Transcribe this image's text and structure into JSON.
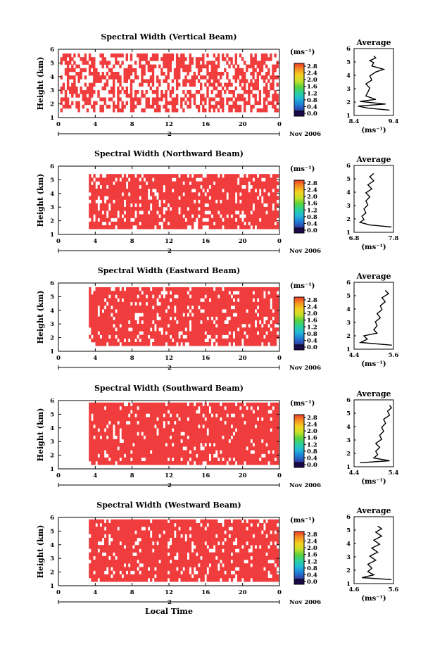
{
  "figure": {
    "xlabel": "Local Time",
    "date_label": "2",
    "month_label": "Nov 2006",
    "colorbar_unit": "(ms⁻¹)",
    "average_title": "Average",
    "average_xunit": "(ms⁻¹)",
    "ylabel": "Height (km)",
    "colors": {
      "fill": "#f03c3c",
      "white_gap": "#ffffff",
      "line": "#000000",
      "colorbar_stops": [
        "#1a0a4a",
        "#2e3fa8",
        "#1e7fd8",
        "#22b8d8",
        "#2ad19a",
        "#5ad23c",
        "#c8e028",
        "#f5d020",
        "#f59020",
        "#ee3a28"
      ]
    },
    "icons": {
      "colorbar": "rainbow-colorbar",
      "date-marker": "date-arrow-icon"
    }
  },
  "chart_data": [
    {
      "type": "heatmap",
      "title": "Spectral Width (Vertical Beam)",
      "xlabel": "Local Time",
      "ylabel": "Height (km)",
      "x_ticks": [
        "0",
        "4",
        "8",
        "12",
        "16",
        "20",
        "0"
      ],
      "xlim": [
        0,
        24
      ],
      "y_ticks": [
        "1",
        "2",
        "3",
        "4",
        "5",
        "6"
      ],
      "ylim": [
        1,
        6
      ],
      "colorbar_ticks": [
        "2.8",
        "2.4",
        "2.0",
        "1.6",
        "1.2",
        "0.8",
        "0.4",
        "0.0"
      ],
      "colorbar_range": [
        0,
        2.8
      ],
      "coverage": {
        "alt_min": 1.4,
        "alt_max": 5.6,
        "fill_fraction": 0.55
      },
      "average_profile": {
        "title": "Average",
        "xlabel": "(ms⁻¹)",
        "x_ticks": [
          "8.4",
          "9.4"
        ],
        "xlim": [
          8.4,
          9.4
        ],
        "y_ticks": [
          "1",
          "2",
          "3",
          "4",
          "5",
          "6"
        ],
        "ylim": [
          1,
          6
        ],
        "profile": [
          {
            "h": 1.4,
            "v": 9.3
          },
          {
            "h": 1.55,
            "v": 8.75
          },
          {
            "h": 1.7,
            "v": 8.5
          },
          {
            "h": 1.85,
            "v": 9.2
          },
          {
            "h": 2.05,
            "v": 8.55
          },
          {
            "h": 2.2,
            "v": 8.95
          },
          {
            "h": 2.45,
            "v": 8.7
          },
          {
            "h": 2.75,
            "v": 8.75
          },
          {
            "h": 3.05,
            "v": 8.8
          },
          {
            "h": 3.35,
            "v": 8.7
          },
          {
            "h": 3.65,
            "v": 8.85
          },
          {
            "h": 3.95,
            "v": 8.8
          },
          {
            "h": 4.25,
            "v": 8.95
          },
          {
            "h": 4.45,
            "v": 9.15
          },
          {
            "h": 4.7,
            "v": 8.85
          },
          {
            "h": 4.95,
            "v": 8.9
          },
          {
            "h": 5.1,
            "v": 8.8
          },
          {
            "h": 5.3,
            "v": 8.95
          },
          {
            "h": 5.45,
            "v": 8.9
          }
        ]
      }
    },
    {
      "type": "heatmap",
      "title": "Spectral Width (Northward Beam)",
      "xlabel": "Local Time",
      "ylabel": "Height (km)",
      "x_ticks": [
        "0",
        "4",
        "8",
        "12",
        "16",
        "20",
        "0"
      ],
      "xlim": [
        0,
        24
      ],
      "y_ticks": [
        "1",
        "2",
        "3",
        "4",
        "5",
        "6"
      ],
      "ylim": [
        1,
        6
      ],
      "colorbar_ticks": [
        "2.8",
        "2.4",
        "2.0",
        "1.6",
        "1.2",
        "0.8",
        "0.4",
        "0.0"
      ],
      "colorbar_range": [
        0,
        2.8
      ],
      "coverage": {
        "alt_min": 1.4,
        "alt_max": 5.4,
        "fill_fraction": 0.82
      },
      "average_profile": {
        "title": "Average",
        "xlabel": "(ms⁻¹)",
        "x_ticks": [
          "6.8",
          "7.8"
        ],
        "xlim": [
          6.8,
          7.8
        ],
        "y_ticks": [
          "1",
          "2",
          "3",
          "4",
          "5",
          "6"
        ],
        "ylim": [
          1,
          6
        ],
        "profile": [
          {
            "h": 1.4,
            "v": 7.75
          },
          {
            "h": 1.55,
            "v": 7.2
          },
          {
            "h": 1.75,
            "v": 6.95
          },
          {
            "h": 1.95,
            "v": 7.05
          },
          {
            "h": 2.2,
            "v": 7.0
          },
          {
            "h": 2.45,
            "v": 7.1
          },
          {
            "h": 2.75,
            "v": 7.05
          },
          {
            "h": 3.05,
            "v": 7.15
          },
          {
            "h": 3.35,
            "v": 7.1
          },
          {
            "h": 3.65,
            "v": 7.2
          },
          {
            "h": 3.95,
            "v": 7.1
          },
          {
            "h": 4.25,
            "v": 7.25
          },
          {
            "h": 4.55,
            "v": 7.15
          },
          {
            "h": 4.85,
            "v": 7.3
          },
          {
            "h": 5.15,
            "v": 7.2
          },
          {
            "h": 5.4,
            "v": 7.3
          }
        ]
      }
    },
    {
      "type": "heatmap",
      "title": "Spectral Width (Eastward Beam)",
      "xlabel": "Local Time",
      "ylabel": "Height (km)",
      "x_ticks": [
        "0",
        "4",
        "8",
        "12",
        "16",
        "20",
        "0"
      ],
      "xlim": [
        0,
        24
      ],
      "y_ticks": [
        "1",
        "2",
        "3",
        "4",
        "5",
        "6"
      ],
      "ylim": [
        1,
        6
      ],
      "colorbar_ticks": [
        "2.8",
        "2.4",
        "2.0",
        "1.6",
        "1.2",
        "0.8",
        "0.4",
        "0.0"
      ],
      "colorbar_range": [
        0,
        2.8
      ],
      "coverage": {
        "alt_min": 1.4,
        "alt_max": 5.6,
        "fill_fraction": 0.85
      },
      "average_profile": {
        "title": "Average",
        "xlabel": "(ms⁻¹)",
        "x_ticks": [
          "4.4",
          "5.6"
        ],
        "xlim": [
          4.4,
          5.6
        ],
        "y_ticks": [
          "1",
          "2",
          "3",
          "4",
          "5",
          "6"
        ],
        "ylim": [
          1,
          6
        ],
        "profile": [
          {
            "h": 1.3,
            "v": 5.55
          },
          {
            "h": 1.5,
            "v": 4.6
          },
          {
            "h": 1.75,
            "v": 4.8
          },
          {
            "h": 2.0,
            "v": 4.7
          },
          {
            "h": 2.2,
            "v": 5.1
          },
          {
            "h": 2.45,
            "v": 5.0
          },
          {
            "h": 2.75,
            "v": 5.1
          },
          {
            "h": 3.05,
            "v": 5.05
          },
          {
            "h": 3.35,
            "v": 5.2
          },
          {
            "h": 3.65,
            "v": 5.1
          },
          {
            "h": 3.95,
            "v": 5.25
          },
          {
            "h": 4.25,
            "v": 5.2
          },
          {
            "h": 4.55,
            "v": 5.35
          },
          {
            "h": 4.85,
            "v": 5.25
          },
          {
            "h": 5.15,
            "v": 5.45
          },
          {
            "h": 5.4,
            "v": 5.35
          }
        ]
      }
    },
    {
      "type": "heatmap",
      "title": "Spectral Width (Southward Beam)",
      "xlabel": "Local Time",
      "ylabel": "Height (km)",
      "x_ticks": [
        "0",
        "4",
        "8",
        "12",
        "16",
        "20",
        "0"
      ],
      "xlim": [
        0,
        24
      ],
      "y_ticks": [
        "1",
        "2",
        "3",
        "4",
        "5",
        "6"
      ],
      "ylim": [
        1,
        6
      ],
      "colorbar_ticks": [
        "2.8",
        "2.4",
        "2.0",
        "1.6",
        "1.2",
        "0.8",
        "0.4",
        "0.0"
      ],
      "colorbar_range": [
        0,
        2.8
      ],
      "coverage": {
        "alt_min": 1.3,
        "alt_max": 5.6,
        "fill_fraction": 0.88
      },
      "average_profile": {
        "title": "Average",
        "xlabel": "(ms⁻¹)",
        "x_ticks": [
          "4.4",
          "5.4"
        ],
        "xlim": [
          4.4,
          5.4
        ],
        "y_ticks": [
          "1",
          "2",
          "3",
          "4",
          "5",
          "6"
        ],
        "ylim": [
          1,
          6
        ],
        "profile": [
          {
            "h": 1.3,
            "v": 4.55
          },
          {
            "h": 1.45,
            "v": 5.3
          },
          {
            "h": 1.65,
            "v": 4.9
          },
          {
            "h": 1.9,
            "v": 5.0
          },
          {
            "h": 2.15,
            "v": 4.95
          },
          {
            "h": 2.45,
            "v": 5.05
          },
          {
            "h": 2.75,
            "v": 4.95
          },
          {
            "h": 3.05,
            "v": 5.1
          },
          {
            "h": 3.35,
            "v": 5.05
          },
          {
            "h": 3.65,
            "v": 5.15
          },
          {
            "h": 3.95,
            "v": 5.1
          },
          {
            "h": 4.25,
            "v": 5.2
          },
          {
            "h": 4.55,
            "v": 5.15
          },
          {
            "h": 4.85,
            "v": 5.3
          },
          {
            "h": 5.15,
            "v": 5.25
          },
          {
            "h": 5.4,
            "v": 5.35
          },
          {
            "h": 5.6,
            "v": 5.3
          }
        ]
      }
    },
    {
      "type": "heatmap",
      "title": "Spectral Width (Westward Beam)",
      "xlabel": "Local Time",
      "ylabel": "Height (km)",
      "x_ticks": [
        "0",
        "4",
        "8",
        "12",
        "16",
        "20",
        "0"
      ],
      "xlim": [
        0,
        24
      ],
      "y_ticks": [
        "1",
        "2",
        "3",
        "4",
        "5",
        "6"
      ],
      "ylim": [
        1,
        6
      ],
      "colorbar_ticks": [
        "2.8",
        "2.4",
        "2.0",
        "1.6",
        "1.2",
        "0.8",
        "0.4",
        "0.0"
      ],
      "colorbar_range": [
        0,
        2.8
      ],
      "coverage": {
        "alt_min": 1.3,
        "alt_max": 5.6,
        "fill_fraction": 0.84
      },
      "average_profile": {
        "title": "Average",
        "xlabel": "(ms⁻¹)",
        "x_ticks": [
          "4.6",
          "5.6"
        ],
        "xlim": [
          4.6,
          5.6
        ],
        "y_ticks": [
          "1",
          "2",
          "3",
          "4",
          "5",
          "6"
        ],
        "ylim": [
          1,
          6
        ],
        "profile": [
          {
            "h": 1.3,
            "v": 5.55
          },
          {
            "h": 1.45,
            "v": 4.8
          },
          {
            "h": 1.65,
            "v": 5.1
          },
          {
            "h": 1.9,
            "v": 4.95
          },
          {
            "h": 2.15,
            "v": 5.05
          },
          {
            "h": 2.45,
            "v": 4.95
          },
          {
            "h": 2.75,
            "v": 5.15
          },
          {
            "h": 3.05,
            "v": 5.0
          },
          {
            "h": 3.35,
            "v": 5.2
          },
          {
            "h": 3.65,
            "v": 5.05
          },
          {
            "h": 3.95,
            "v": 5.25
          },
          {
            "h": 4.25,
            "v": 5.1
          },
          {
            "h": 4.55,
            "v": 5.3
          },
          {
            "h": 4.85,
            "v": 5.15
          },
          {
            "h": 5.1,
            "v": 5.3
          },
          {
            "h": 5.3,
            "v": 5.2
          }
        ]
      }
    }
  ]
}
